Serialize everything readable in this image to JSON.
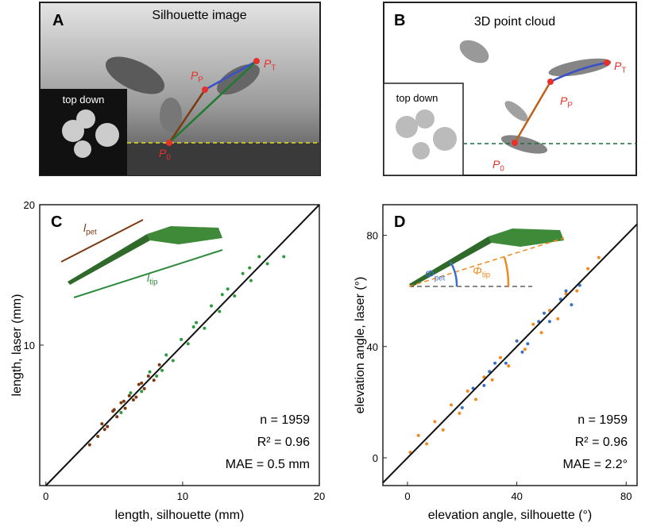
{
  "panel_a": {
    "letter": "A",
    "title": "Silhouette image",
    "inset": "top down",
    "points": [
      {
        "label": "P",
        "sub": "T"
      },
      {
        "label": "P",
        "sub": "P"
      },
      {
        "label": "P",
        "sub": "0"
      }
    ]
  },
  "panel_b": {
    "letter": "B",
    "title": "3D point cloud",
    "inset": "top down",
    "points": [
      {
        "label": "P",
        "sub": "T"
      },
      {
        "label": "P",
        "sub": "P"
      },
      {
        "label": "P",
        "sub": "0"
      }
    ]
  },
  "chart_data": [
    {
      "type": "scatter",
      "panel_label": "C",
      "xlabel": "length, silhouette (mm)",
      "ylabel": "length, laser (mm)",
      "xlim": [
        -0.45,
        20
      ],
      "ylim": [
        0,
        20
      ],
      "xticks": [
        0,
        10,
        20
      ],
      "yticks": [
        10,
        20
      ],
      "stats": [
        "n  = 1959",
        "R² = 0.96",
        "MAE = 0.5 mm"
      ],
      "inset_labels": [
        {
          "label": "l",
          "sub": "pet",
          "color": "#7b3a10"
        },
        {
          "label": "l",
          "sub": "tip",
          "color": "#2e8b3e"
        }
      ],
      "series": [
        {
          "color": "#7b3a10",
          "x": [
            3.2,
            3.8,
            4.1,
            4.5,
            4.9,
            5.2,
            5.5,
            5.8,
            6.1,
            6.4,
            6.8,
            7.2,
            7.5,
            7.9,
            8.3,
            4.3,
            5.0,
            5.7,
            6.6,
            7.0
          ],
          "values": [
            2.9,
            3.5,
            4.4,
            4.2,
            5.3,
            4.9,
            5.9,
            5.5,
            6.4,
            6.1,
            7.2,
            6.9,
            7.8,
            7.5,
            8.6,
            4.0,
            5.4,
            6.0,
            6.3,
            7.3
          ]
        },
        {
          "color": "#2e9a3e",
          "x": [
            5.5,
            6.2,
            7.0,
            7.6,
            8.1,
            8.8,
            9.3,
            9.9,
            10.4,
            11.0,
            11.6,
            12.1,
            12.7,
            13.3,
            13.8,
            14.4,
            15.0,
            15.6,
            16.2,
            17.4,
            8.5,
            10.8,
            12.9,
            14.9
          ],
          "values": [
            5.2,
            6.6,
            6.7,
            8.1,
            7.8,
            9.3,
            8.9,
            10.4,
            10.1,
            11.6,
            11.2,
            12.8,
            12.4,
            14.0,
            13.5,
            15.1,
            14.6,
            16.3,
            15.8,
            16.3,
            8.2,
            11.3,
            13.6,
            15.5
          ]
        }
      ]
    },
    {
      "type": "scatter",
      "panel_label": "D",
      "xlabel": "elevation angle, silhouette (°)",
      "ylabel": "elevation angle, laser (°)",
      "xlim": [
        -9,
        84
      ],
      "ylim": [
        -10,
        91
      ],
      "xticks": [
        0,
        40,
        80
      ],
      "yticks": [
        0,
        40,
        80
      ],
      "stats": [
        "n  = 1959",
        "R² = 0.96",
        "MAE = 2.2°"
      ],
      "inset_labels": [
        {
          "label": "Φ",
          "sub": "pet",
          "color": "#3a6fc8"
        },
        {
          "label": "Φ",
          "sub": "tip",
          "color": "#f08a1e"
        }
      ],
      "series": [
        {
          "color": "#f08a1e",
          "x": [
            1,
            4,
            7,
            10,
            13,
            16,
            19,
            22,
            25,
            28,
            31,
            34,
            37,
            40,
            43,
            46,
            49,
            52,
            55,
            58,
            62,
            66,
            70
          ],
          "values": [
            2,
            8,
            5,
            13,
            10,
            19,
            16,
            24,
            21,
            29,
            28,
            36,
            33,
            42,
            39,
            48,
            45,
            53,
            50,
            59,
            60,
            68,
            72
          ]
        },
        {
          "color": "#3a6fc8",
          "x": [
            20,
            24,
            28,
            32,
            36,
            40,
            44,
            48,
            52,
            56,
            60,
            63,
            30,
            42,
            50,
            58
          ],
          "values": [
            18,
            25,
            26,
            34,
            34,
            42,
            41,
            49,
            49,
            57,
            55,
            62,
            31,
            38,
            52,
            60
          ]
        }
      ]
    }
  ]
}
